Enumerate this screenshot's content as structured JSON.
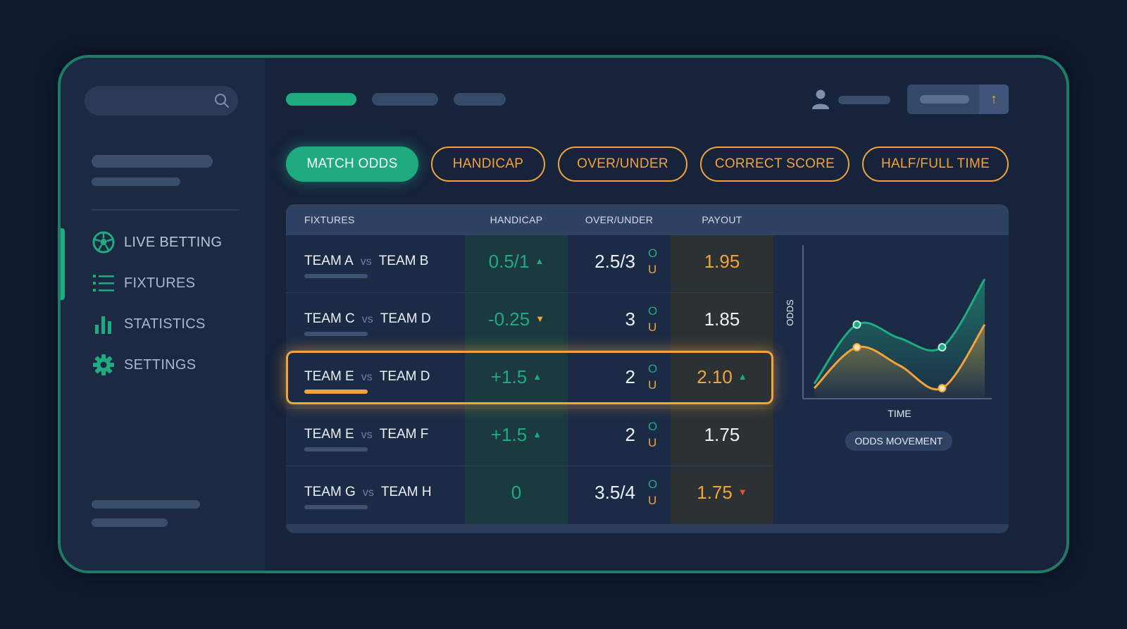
{
  "sidebar": {
    "nav": [
      {
        "label": "LIVE BETTING",
        "icon": "soccer-ball-icon",
        "active": true
      },
      {
        "label": "FIXTURES",
        "icon": "list-icon"
      },
      {
        "label": "STATISTICS",
        "icon": "bar-chart-icon"
      },
      {
        "label": "SETTINGS",
        "icon": "gear-icon"
      }
    ]
  },
  "header": {
    "action_icon": "arrow-up-icon",
    "action_symbol": "↑"
  },
  "tabs": [
    "MATCH ODDS",
    "HANDICAP",
    "OVER/UNDER",
    "CORRECT SCORE",
    "HALF/FULL TIME"
  ],
  "active_tab": "MATCH ODDS",
  "table": {
    "headers": {
      "fixtures": "FIXTURES",
      "handicap": "HANDICAP",
      "over_under": "OVER/UNDER",
      "payout": "PAYOUT"
    },
    "vs_label": "vs",
    "over_label": "O",
    "under_label": "U",
    "rows": [
      {
        "home": "TEAM A",
        "away": "TEAM B",
        "handicap": "0.5/1",
        "handicap_trend": "up",
        "ou": "2.5/3",
        "payout": "1.95",
        "payout_trend": "",
        "payout_highlight": true
      },
      {
        "home": "TEAM C",
        "away": "TEAM D",
        "handicap": "-0.25",
        "handicap_trend": "down",
        "ou": "3",
        "payout": "1.85",
        "payout_trend": "",
        "payout_highlight": false
      },
      {
        "home": "TEAM E",
        "away": "TEAM D",
        "handicap": "+1.5",
        "handicap_trend": "up",
        "ou": "2",
        "payout": "2.10",
        "payout_trend": "up",
        "payout_highlight": true,
        "selected": true
      },
      {
        "home": "TEAM E",
        "away": "TEAM F",
        "handicap": "+1.5",
        "handicap_trend": "up",
        "ou": "2",
        "payout": "1.75",
        "payout_trend": "",
        "payout_highlight": false
      },
      {
        "home": "TEAM G",
        "away": "TEAM H",
        "handicap": "0",
        "handicap_trend": "",
        "ou": "3.5/4",
        "payout": "1.75",
        "payout_trend": "down",
        "payout_highlight": true
      }
    ]
  },
  "chart_data": {
    "type": "area",
    "xlabel": "TIME",
    "ylabel": "ODDS",
    "caption": "ODDS MOVEMENT",
    "x": [
      0,
      1,
      2,
      3,
      4
    ],
    "series": [
      {
        "values": [
          1.1,
          2.4,
          2.1,
          1.9,
          3.4
        ],
        "color": "#1faa80",
        "markers": [
          1,
          3
        ]
      },
      {
        "values": [
          1.0,
          1.9,
          1.5,
          1.0,
          2.4
        ],
        "color": "#f2a33a",
        "markers": [
          1,
          3
        ]
      }
    ],
    "ylim": [
      0.8,
      3.9
    ],
    "grid": false
  },
  "colors": {
    "accent": "#1faa80",
    "highlight": "#f2a33a",
    "down": "#e2533a"
  }
}
